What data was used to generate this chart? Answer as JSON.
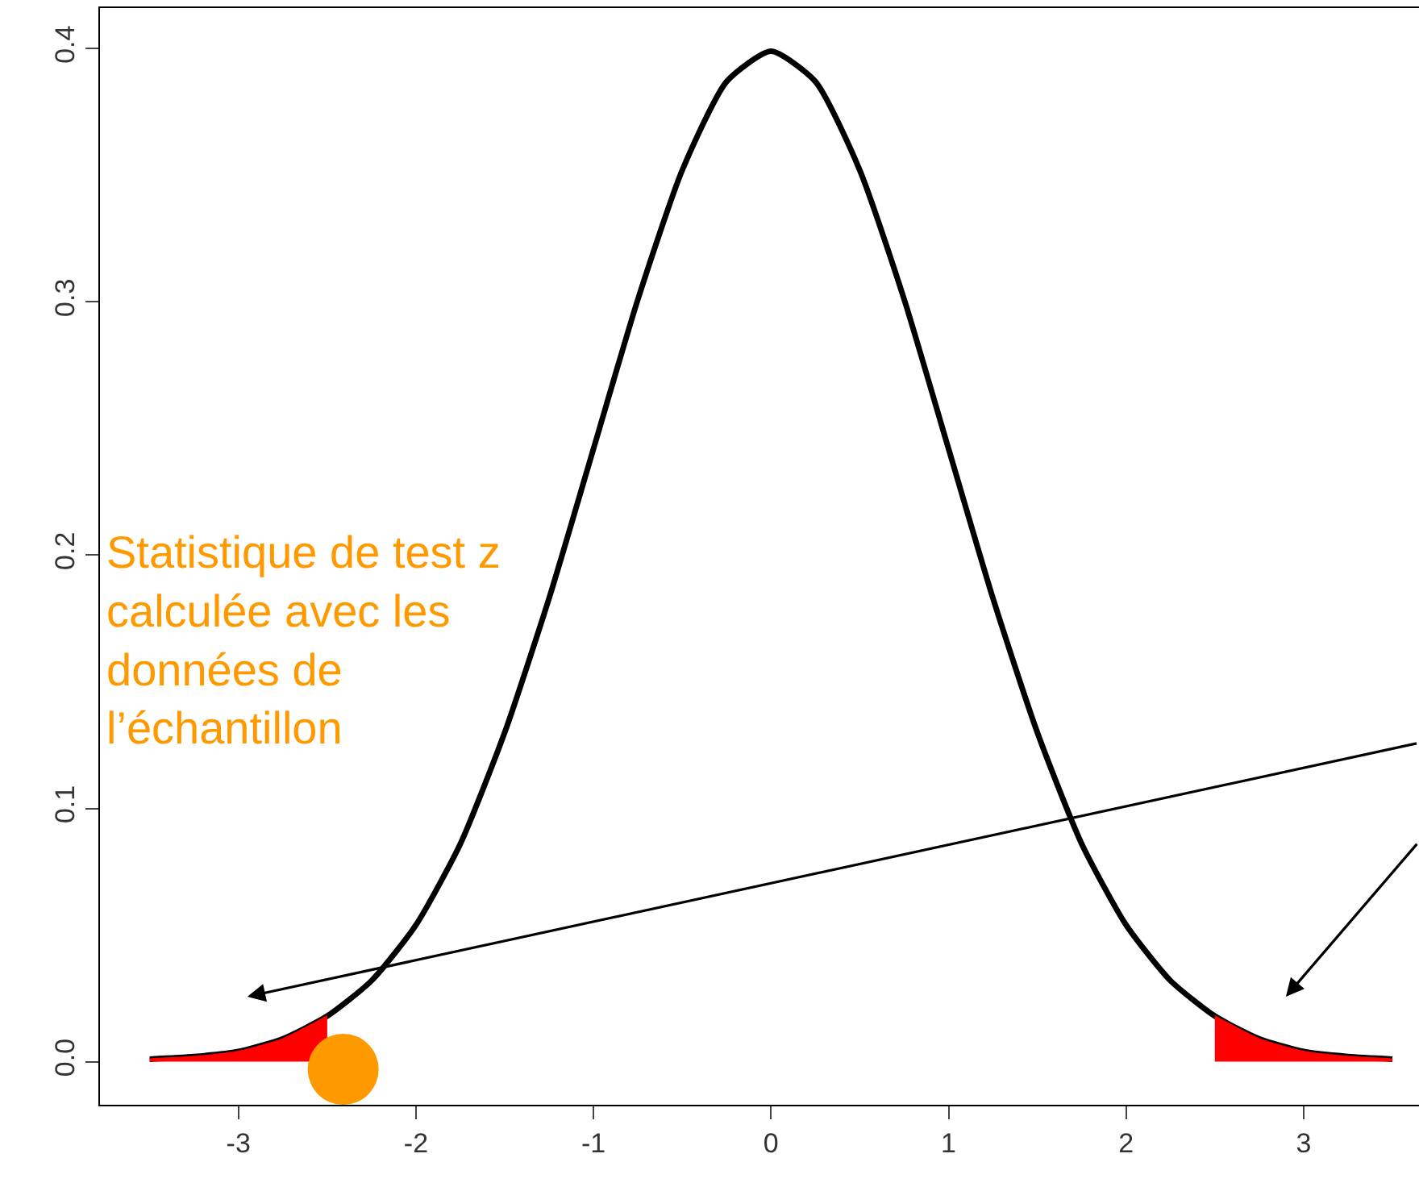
{
  "chart_data": {
    "type": "line",
    "xlim": [
      -3.78,
      3.65
    ],
    "ylim": [
      -0.017,
      0.416
    ],
    "xticks": [
      -3,
      -2,
      -1,
      0,
      1,
      2,
      3
    ],
    "yticks": [
      {
        "value": 0,
        "label": "0.0"
      },
      0.1,
      0.2,
      0.3,
      0.4
    ],
    "line_style": "solid",
    "series": [
      {
        "color": "#000000",
        "x": [
          -3.5,
          -3.25,
          -3,
          -2.75,
          -2.5,
          -2.25,
          -2,
          -1.75,
          -1.5,
          -1.25,
          -1,
          -0.75,
          -0.5,
          -0.25,
          0,
          0.25,
          0.5,
          0.75,
          1,
          1.25,
          1.5,
          1.75,
          2,
          2.25,
          2.5,
          2.75,
          3,
          3.25,
          3.5
        ],
        "values": [
          0.001,
          0.002,
          0.004,
          0.009,
          0.018,
          0.032,
          0.054,
          0.086,
          0.13,
          0.183,
          0.242,
          0.301,
          0.352,
          0.387,
          0.399,
          0.387,
          0.352,
          0.301,
          0.242,
          0.183,
          0.13,
          0.086,
          0.054,
          0.032,
          0.018,
          0.009,
          0.004,
          0.002,
          0.001
        ]
      },
      {
        "type": "area",
        "color": "#ff0000",
        "x": [
          -3.5,
          -3.25,
          -3,
          -2.75,
          -2.5
        ],
        "values": [
          0.001,
          0.002,
          0.004,
          0.009,
          0.018
        ]
      },
      {
        "type": "area",
        "color": "#ff0000",
        "x": [
          2.5,
          2.75,
          3,
          3.25,
          3.5
        ],
        "values": [
          0.018,
          0.009,
          0.004,
          0.002,
          0.001
        ]
      },
      {
        "type": "scatter",
        "color": "#ff9900",
        "x": [
          -2.41
        ],
        "values": [
          -0.003
        ]
      }
    ],
    "annotations": [
      "Statistique de test z\ncalculée avec les\ndonnées de\nl’échantillon"
    ]
  }
}
